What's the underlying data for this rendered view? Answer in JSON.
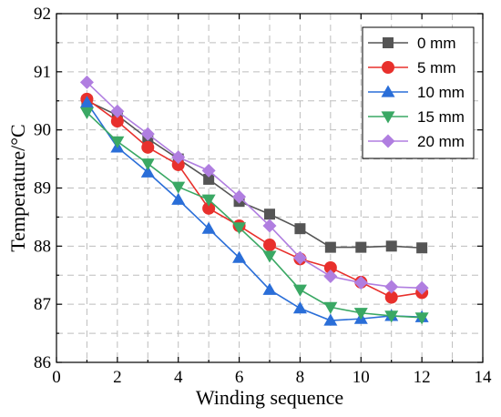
{
  "chart_data": {
    "type": "line",
    "title": "",
    "xlabel": "Winding sequence",
    "ylabel": "Temperature/°C",
    "xlim": [
      0,
      14
    ],
    "ylim": [
      86,
      92
    ],
    "xticks": [
      0,
      2,
      4,
      6,
      8,
      10,
      12,
      14
    ],
    "yticks": [
      86,
      87,
      88,
      89,
      90,
      91,
      92
    ],
    "grid": true,
    "legend_position": "top-right",
    "x": [
      1,
      2,
      3,
      4,
      5,
      6,
      7,
      8,
      9,
      10,
      11,
      12
    ],
    "series": [
      {
        "name": "0 mm",
        "color": "#555555",
        "marker": "square",
        "values": [
          90.5,
          90.25,
          89.85,
          89.5,
          89.15,
          88.77,
          88.55,
          88.3,
          87.98,
          87.98,
          88.0,
          87.97
        ]
      },
      {
        "name": "5 mm",
        "color": "#e8302c",
        "marker": "circle",
        "values": [
          90.53,
          90.15,
          89.7,
          89.4,
          88.65,
          88.35,
          88.02,
          87.78,
          87.63,
          87.38,
          87.12,
          87.2
        ]
      },
      {
        "name": "10 mm",
        "color": "#2a6ed8",
        "marker": "triangle-up",
        "values": [
          90.47,
          89.7,
          89.27,
          88.8,
          88.3,
          87.8,
          87.25,
          86.93,
          86.72,
          86.75,
          86.8,
          86.78
        ]
      },
      {
        "name": "15 mm",
        "color": "#3aa864",
        "marker": "triangle-down",
        "values": [
          90.3,
          89.8,
          89.42,
          89.02,
          88.8,
          88.32,
          87.83,
          87.25,
          86.95,
          86.85,
          86.8,
          86.77
        ]
      },
      {
        "name": "20 mm",
        "color": "#b07ee0",
        "marker": "diamond",
        "values": [
          90.82,
          90.32,
          89.93,
          89.53,
          89.3,
          88.85,
          88.35,
          87.8,
          87.48,
          87.37,
          87.3,
          87.28
        ]
      }
    ]
  }
}
